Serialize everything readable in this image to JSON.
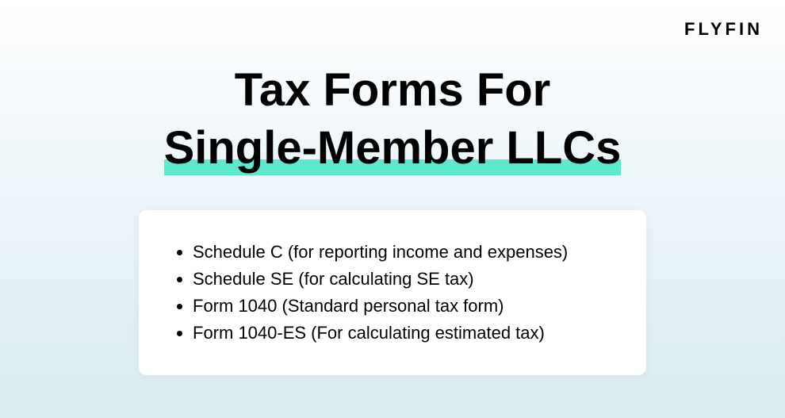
{
  "brand": "FLYFIN",
  "title": {
    "line1": "Tax Forms For",
    "line2": "Single-Member LLCs"
  },
  "card": {
    "items": [
      "Schedule C (for reporting income and expenses)",
      "Schedule SE (for calculating SE tax)",
      "Form 1040 (Standard personal tax form)",
      "Form 1040-ES (For calculating estimated tax)"
    ]
  },
  "style": {
    "background_gradient_top": "#ffffff",
    "background_gradient_mid": "#eef6fa",
    "background_gradient_bottom": "#d9edf3",
    "highlight_color": "#5de8d0",
    "card_background": "#ffffff",
    "text_color": "#000000",
    "title_fontsize": 58,
    "list_fontsize": 22,
    "brand_fontsize": 22
  }
}
